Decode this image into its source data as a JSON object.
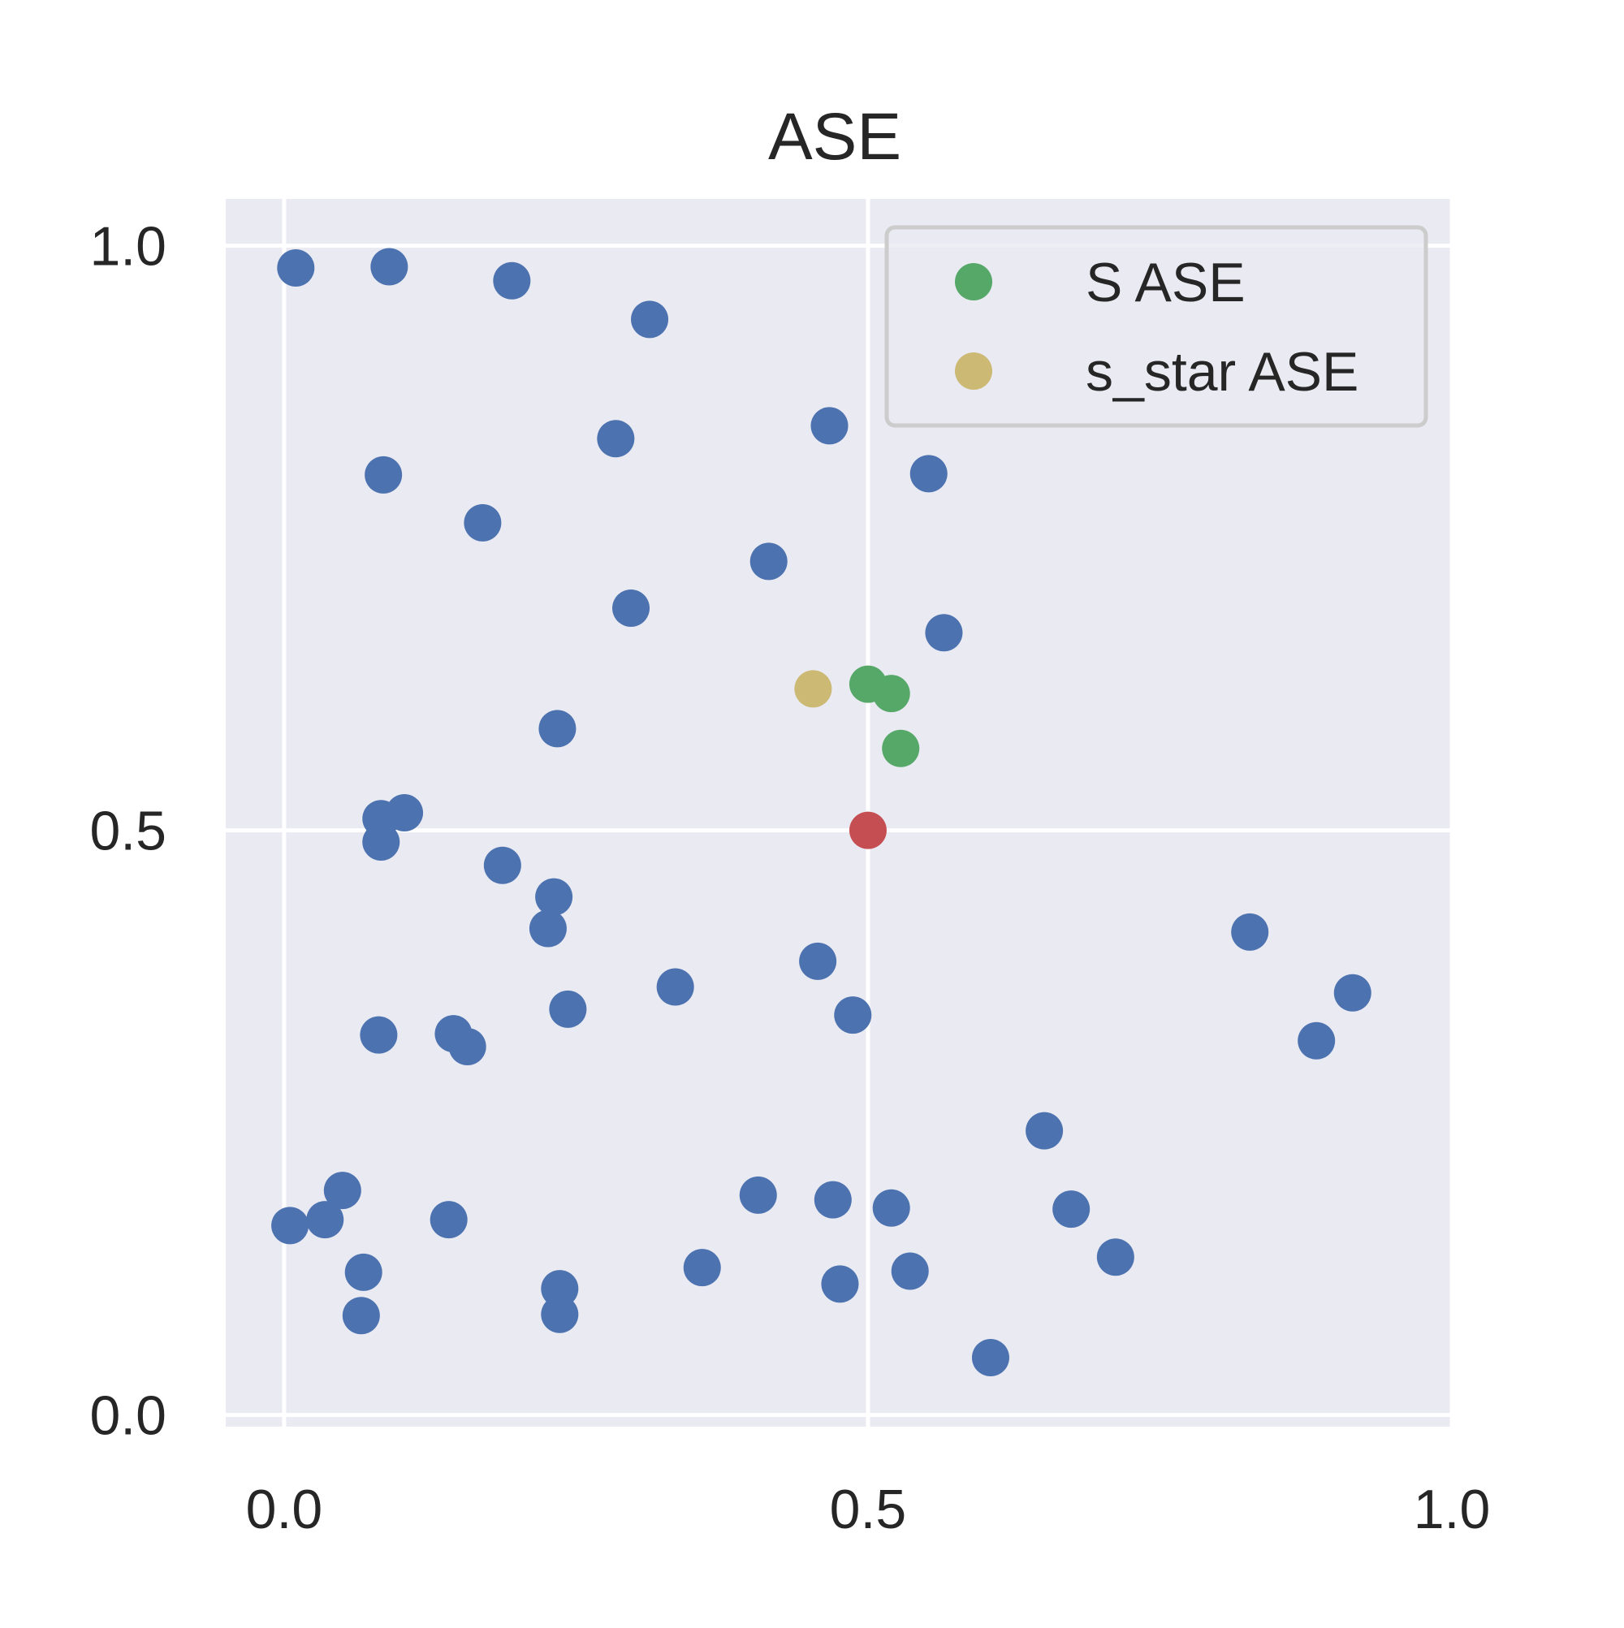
{
  "chart_data": {
    "type": "scatter",
    "title": "ASE",
    "xlabel": "",
    "ylabel": "",
    "xlim": [
      -0.05,
      1.0
    ],
    "ylim": [
      -0.01,
      1.04
    ],
    "xticks": [
      0.0,
      0.5,
      1.0
    ],
    "yticks": [
      0.0,
      0.5,
      1.0
    ],
    "x_tick_labels": [
      "0.0",
      "0.5",
      "1.0"
    ],
    "y_tick_labels": [
      "0.0",
      "0.5",
      "1.0"
    ],
    "grid": true,
    "legend_position": "top-right",
    "colors": {
      "background": "#eaeaf2",
      "grid": "#ffffff",
      "points": "#4c72b0",
      "s_ase": "#55a868",
      "s_star_ase": "#ccb974",
      "highlight": "#c44e52"
    },
    "series": [
      {
        "color": "#4c72b0",
        "in_legend": false,
        "points": [
          [
            0.01,
            0.981
          ],
          [
            0.09,
            0.982
          ],
          [
            0.195,
            0.97
          ],
          [
            0.313,
            0.937
          ],
          [
            0.284,
            0.835
          ],
          [
            0.467,
            0.846
          ],
          [
            0.085,
            0.804
          ],
          [
            0.17,
            0.763
          ],
          [
            0.415,
            0.73
          ],
          [
            0.552,
            0.805
          ],
          [
            0.297,
            0.69
          ],
          [
            0.565,
            0.669
          ],
          [
            0.234,
            0.587
          ],
          [
            0.083,
            0.51
          ],
          [
            0.103,
            0.515
          ],
          [
            0.083,
            0.49
          ],
          [
            0.187,
            0.47
          ],
          [
            0.231,
            0.443
          ],
          [
            0.226,
            0.416
          ],
          [
            0.035,
            0.167
          ],
          [
            0.081,
            0.325
          ],
          [
            0.145,
            0.326
          ],
          [
            0.157,
            0.315
          ],
          [
            0.243,
            0.347
          ],
          [
            0.335,
            0.366
          ],
          [
            0.457,
            0.388
          ],
          [
            0.487,
            0.342
          ],
          [
            0.827,
            0.413
          ],
          [
            0.915,
            0.361
          ],
          [
            0.884,
            0.32
          ],
          [
            0.651,
            0.243
          ],
          [
            0.674,
            0.176
          ],
          [
            0.712,
            0.135
          ],
          [
            0.05,
            0.192
          ],
          [
            0.141,
            0.167
          ],
          [
            0.068,
            0.122
          ],
          [
            0.066,
            0.085
          ],
          [
            0.236,
            0.108
          ],
          [
            0.236,
            0.086
          ],
          [
            0.358,
            0.126
          ],
          [
            0.406,
            0.188
          ],
          [
            0.47,
            0.184
          ],
          [
            0.476,
            0.112
          ],
          [
            0.52,
            0.177
          ],
          [
            0.536,
            0.123
          ],
          [
            0.605,
            0.049
          ],
          [
            0.005,
            0.162
          ]
        ]
      },
      {
        "name": "S ASE",
        "color": "#55a868",
        "in_legend": true,
        "points": [
          [
            0.5,
            0.625
          ],
          [
            0.52,
            0.617
          ],
          [
            0.528,
            0.57
          ]
        ]
      },
      {
        "name": "s_star_ase ASE",
        "legend_label": "s_star ASE",
        "color": "#ccb974",
        "in_legend": true,
        "points": [
          [
            0.453,
            0.621
          ]
        ]
      },
      {
        "color": "#c44e52",
        "in_legend": false,
        "points": [
          [
            0.5,
            0.5
          ]
        ]
      }
    ]
  }
}
